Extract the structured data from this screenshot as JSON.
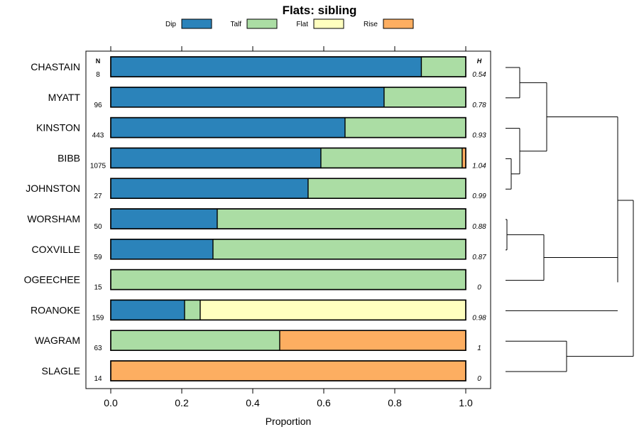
{
  "chart_data": {
    "type": "bar",
    "orientation": "horizontal",
    "stacked": true,
    "title": "Flats: sibling",
    "xlabel": "Proportion",
    "xlim": [
      0,
      1
    ],
    "xticks": [
      "0.0",
      "0.2",
      "0.4",
      "0.6",
      "0.8",
      "1.0"
    ],
    "n_header": "N",
    "h_header": "H",
    "legend_placement": "top",
    "series": [
      {
        "name": "Dip",
        "color": "#2b83ba",
        "values": [
          0.875,
          0.77,
          0.66,
          0.592,
          0.556,
          0.3,
          0.288,
          0.0,
          0.208,
          0.0,
          0.0
        ]
      },
      {
        "name": "Talf",
        "color": "#abdda4",
        "values": [
          0.125,
          0.23,
          0.34,
          0.398,
          0.444,
          0.7,
          0.712,
          1.0,
          0.044,
          0.476,
          0.0
        ]
      },
      {
        "name": "Flat",
        "color": "#ffffbf",
        "values": [
          0.0,
          0.0,
          0.0,
          0.0,
          0.0,
          0.0,
          0.0,
          0.0,
          0.748,
          0.0,
          0.0
        ]
      },
      {
        "name": "Rise",
        "color": "#fdae61",
        "values": [
          0.0,
          0.0,
          0.0,
          0.01,
          0.0,
          0.0,
          0.0,
          0.0,
          0.0,
          0.524,
          1.0
        ]
      }
    ],
    "categories": [
      {
        "name": "CHASTAIN",
        "n": "8",
        "h": "0.54"
      },
      {
        "name": "MYATT",
        "n": "96",
        "h": "0.78"
      },
      {
        "name": "KINSTON",
        "n": "443",
        "h": "0.93"
      },
      {
        "name": "BIBB",
        "n": "1075",
        "h": "1.04"
      },
      {
        "name": "JOHNSTON",
        "n": "27",
        "h": "0.99"
      },
      {
        "name": "WORSHAM",
        "n": "50",
        "h": "0.88"
      },
      {
        "name": "COXVILLE",
        "n": "59",
        "h": "0.87"
      },
      {
        "name": "OGEECHEE",
        "n": "15",
        "h": "0"
      },
      {
        "name": "ROANOKE",
        "n": "159",
        "h": "0.98"
      },
      {
        "name": "WAGRAM",
        "n": "63",
        "h": "1"
      },
      {
        "name": "SLAGLE",
        "n": "14",
        "h": "0"
      }
    ],
    "dendrogram": {
      "description": "hierarchical clustering of categories",
      "merges": [
        {
          "left": "BIBB",
          "right": "JOHNSTON",
          "height": 0.06
        },
        {
          "left": "WORSHAM",
          "right": "COXVILLE",
          "height": 0.01
        },
        {
          "left": "CHASTAIN",
          "right": "MYATT",
          "height": 0.12
        },
        {
          "left": "KINSTON",
          "right": "BIBB+JOHNSTON",
          "height": 0.13
        },
        {
          "left": "CHASTAIN+MYATT",
          "right": "KINSTON+BIBB+JOHNSTON",
          "height": 0.32
        },
        {
          "left": "WORSHAM+COXVILLE",
          "right": "OGEECHEE",
          "height": 0.3
        },
        {
          "left": "WORSHAM+COXVILLE+OGEECHEE",
          "right": "ROANOKE",
          "height": 0.88
        },
        {
          "left": "CHASTAIN..JOHNSTON",
          "right": "WORSHAM..ROANOKE",
          "height": 0.88
        },
        {
          "left": "WAGRAM",
          "right": "SLAGLE",
          "height": 0.48
        },
        {
          "left": "CHASTAIN..ROANOKE",
          "right": "WAGRAM+SLAGLE",
          "height": 1.0
        }
      ]
    }
  }
}
